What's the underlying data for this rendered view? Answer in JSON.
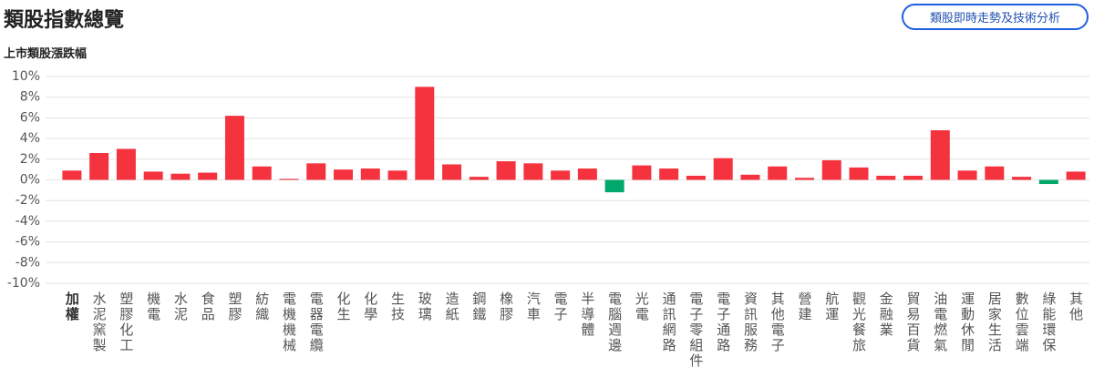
{
  "title": "類股指數總覽",
  "button": "類股即時走勢及技術分析",
  "chart_data": {
    "type": "bar",
    "title": "上市類股漲跌幅",
    "categories": [
      "加權",
      "水泥窯製",
      "塑膠化工",
      "機電",
      "水泥",
      "食品",
      "塑膠",
      "紡織",
      "電機機械",
      "電器電纜",
      "化生",
      "化學",
      "生技",
      "玻璃",
      "造紙",
      "鋼鐵",
      "橡膠",
      "汽車",
      "電子",
      "半導體",
      "電腦週邊",
      "光電",
      "通訊網路",
      "電子零組件",
      "電子通路",
      "資訊服務",
      "其他電子",
      "營建",
      "航運",
      "觀光餐旅",
      "金融業",
      "貿易百貨",
      "油電燃氣",
      "運動休閒",
      "居家生活",
      "數位雲端",
      "綠能環保",
      "其他"
    ],
    "values": [
      0.9,
      2.6,
      3.0,
      0.8,
      0.6,
      0.7,
      6.2,
      1.3,
      0.1,
      1.6,
      1.0,
      1.1,
      0.9,
      9.0,
      1.5,
      0.3,
      1.8,
      1.6,
      0.9,
      1.1,
      -1.2,
      1.4,
      1.1,
      0.4,
      2.1,
      0.5,
      1.3,
      0.2,
      1.9,
      1.2,
      0.4,
      0.4,
      4.8,
      0.9,
      1.3,
      0.3,
      -0.4,
      0.8
    ],
    "up_color": "#f5333f",
    "down_color": "#00a86b",
    "ylim": [
      -10,
      10
    ],
    "yticks": [
      {
        "value": 10,
        "label": "10%"
      },
      {
        "value": 8,
        "label": "8%"
      },
      {
        "value": 6,
        "label": "6%"
      },
      {
        "value": 4,
        "label": "4%"
      },
      {
        "value": 2,
        "label": "2%"
      },
      {
        "value": 0,
        "label": "0%"
      },
      {
        "value": -2,
        "label": "-2%"
      },
      {
        "value": -4,
        "label": "-4%"
      },
      {
        "value": -6,
        "label": "-6%"
      },
      {
        "value": -8,
        "label": "-8%"
      },
      {
        "value": -10,
        "label": "-10%"
      }
    ],
    "grid": true
  }
}
